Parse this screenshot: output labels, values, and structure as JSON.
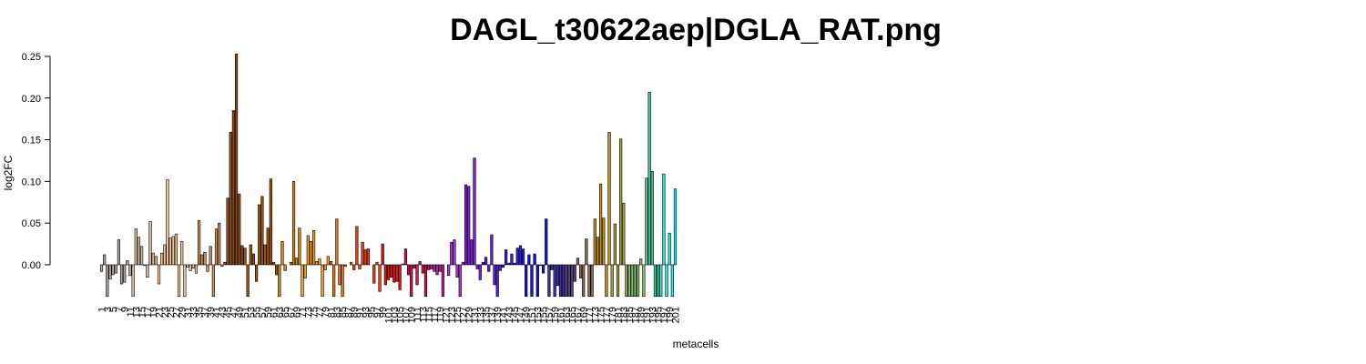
{
  "chart_data": {
    "type": "bar",
    "title": "DAGL_t30622aep|DGLA_RAT.png",
    "x_label": "metacells",
    "y_label": "log2FC",
    "categories": [
      "1",
      null,
      "3",
      null,
      "5",
      null,
      "7",
      null,
      "9",
      null,
      "11",
      null,
      "13",
      null,
      "15",
      null,
      "17",
      null,
      "19",
      null,
      "21",
      null,
      "23",
      null,
      "25",
      null,
      "27",
      null,
      "29",
      null,
      "31",
      null,
      "33",
      null,
      "35",
      null,
      "37",
      null,
      "39",
      null,
      "41",
      null,
      "43",
      null,
      "45",
      null,
      "47",
      null,
      "49",
      null,
      "51",
      null,
      "53",
      null,
      "55",
      null,
      "57",
      null,
      "59",
      null,
      "61",
      null,
      "63",
      null,
      "65",
      null,
      "67",
      null,
      "69",
      null,
      "71",
      null,
      "73",
      null,
      "75",
      null,
      "77",
      null,
      "79",
      null,
      "81",
      null,
      "83",
      null,
      "85",
      null,
      "87",
      null,
      "89",
      null,
      "91",
      null,
      "93",
      null,
      "95",
      null,
      "97",
      null,
      "99",
      null,
      "101",
      null,
      "103",
      null,
      "105",
      null,
      "107",
      null,
      "109",
      null,
      "111",
      null,
      "113",
      null,
      "115",
      null,
      "117",
      null,
      "119",
      null,
      "121",
      null,
      "123",
      null,
      "125",
      null,
      "127",
      null,
      "129",
      null,
      "131",
      null,
      "133",
      null,
      "135",
      null,
      "137",
      null,
      "139",
      null,
      "141",
      null,
      "143",
      null,
      "145",
      null,
      "147",
      null,
      "149",
      null,
      "151",
      null,
      "153",
      null,
      "155",
      null,
      "157",
      null,
      "159",
      null,
      "161",
      null,
      "163",
      null,
      "165",
      null,
      "167",
      null,
      "169",
      null,
      "171",
      null,
      "173",
      null,
      "175",
      null,
      "177",
      null,
      "179",
      null,
      "181",
      null,
      "183",
      null,
      "185",
      null,
      "187",
      null,
      "189",
      null,
      "191",
      null,
      "193",
      null,
      "195",
      null,
      "197",
      null,
      "199",
      null,
      "201"
    ],
    "values": [
      -0.008,
      0.012,
      -0.038,
      -0.017,
      -0.012,
      -0.01,
      0.03,
      -0.023,
      -0.021,
      0.005,
      -0.013,
      -0.038,
      0.043,
      0.033,
      0.022,
      -0.001,
      -0.015,
      0.052,
      0.014,
      0.01,
      -0.023,
      0.014,
      0.024,
      0.102,
      0.032,
      0.034,
      0.037,
      -0.038,
      0.028,
      -0.038,
      -0.003,
      -0.007,
      -0.004,
      -0.01,
      0.053,
      0.012,
      0.015,
      -0.008,
      0.022,
      -0.038,
      0.043,
      0.05,
      -0.002,
      0.003,
      0.08,
      0.159,
      0.185,
      0.253,
      0.085,
      0.023,
      0.02,
      -0.038,
      0.024,
      0.013,
      -0.02,
      0.072,
      0.082,
      0.024,
      0.044,
      0.103,
      0.003,
      -0.012,
      -0.038,
      0.028,
      -0.007,
      0.0,
      0.003,
      0.1,
      0.008,
      0.044,
      -0.038,
      -0.016,
      0.035,
      0.028,
      0.041,
      0.004,
      0.007,
      -0.038,
      -0.006,
      0.01,
      0.004,
      -0.038,
      0.055,
      -0.024,
      -0.038,
      -0.002,
      0.0,
      0.003,
      -0.006,
      0.046,
      -0.005,
      0.027,
      0.018,
      0.019,
      0.0,
      -0.022,
      0.003,
      -0.032,
      0.025,
      -0.024,
      -0.018,
      -0.015,
      -0.021,
      -0.02,
      -0.03,
      0.001,
      0.019,
      -0.012,
      -0.038,
      -0.004,
      -0.024,
      0.004,
      -0.01,
      -0.038,
      -0.006,
      -0.005,
      -0.008,
      -0.012,
      -0.008,
      -0.038,
      0.0,
      -0.013,
      0.027,
      0.03,
      -0.015,
      -0.038,
      0.003,
      0.096,
      0.094,
      0.03,
      0.128,
      -0.005,
      -0.018,
      0.003,
      0.009,
      -0.008,
      0.036,
      -0.024,
      -0.038,
      -0.007,
      -0.003,
      0.018,
      0.002,
      0.013,
      0.002,
      0.02,
      0.023,
      0.019,
      -0.038,
      0.012,
      -0.038,
      0.013,
      -0.038,
      -0.001,
      -0.01,
      0.055,
      -0.038,
      -0.006,
      -0.038,
      -0.025,
      -0.038,
      -0.038,
      -0.038,
      -0.038,
      -0.038,
      -0.02,
      0.008,
      -0.016,
      -0.038,
      0.031,
      -0.038,
      -0.038,
      0.055,
      0.033,
      0.097,
      0.056,
      -0.038,
      0.159,
      -0.038,
      0.049,
      -0.038,
      0.151,
      0.074,
      -0.038,
      -0.038,
      -0.038,
      -0.038,
      -0.038,
      0.007,
      -0.038,
      0.104,
      0.207,
      0.112,
      -0.038,
      -0.038,
      -0.038,
      0.109,
      -0.038,
      0.038,
      -0.038,
      0.091
    ],
    "colors": [
      "#a8a298",
      "#a8a298",
      "#a8a298",
      "#a8a298",
      "#a8a298",
      "#a8a298",
      "#a8a298",
      "#a8a298",
      "#a8a298",
      "#a8a298",
      "#a8a298",
      "#d4bca0",
      "#d4bca0",
      "#d4bca0",
      "#d4bca0",
      "#d4bca0",
      "#d4bca0",
      "#d4bca0",
      "#d4bca0",
      "#f2c490",
      "#f2c490",
      "#f2c490",
      "#f2c490",
      "#f2c490",
      "#f2c490",
      "#f2c490",
      "#f2c490",
      "#f2c490",
      "#f2c490",
      "#e8c8a8",
      "#e8c8a8",
      "#e8c8a8",
      "#e8c8a8",
      "#e8c8a8",
      "#c89060",
      "#c89060",
      "#c89060",
      "#c89060",
      "#c89060",
      "#c89060",
      "#c89060",
      "#c89060",
      "#c89060",
      "#8e4c1c",
      "#8e4c1c",
      "#8e4c1c",
      "#8e4c1c",
      "#8e4c1c",
      "#8e4c1c",
      "#8e4c1c",
      "#9a5210",
      "#9a5210",
      "#9a5210",
      "#9a5210",
      "#9a5210",
      "#9a5210",
      "#9a5210",
      "#9a5210",
      "#9a5210",
      "#9a5210",
      "#9a5210",
      "#9a5210",
      "#d08810",
      "#d08810",
      "#d08810",
      "#d08810",
      "#d08810",
      "#d08810",
      "#d08810",
      "#d08810",
      "#f2a020",
      "#f2a020",
      "#f2a020",
      "#f2a020",
      "#f2a020",
      "#f2a020",
      "#f2a020",
      "#f2a020",
      "#f2a020",
      "#f2a020",
      "#f07414",
      "#f07414",
      "#f07414",
      "#f07414",
      "#f07414",
      "#f07414",
      "#f07414",
      "#f07414",
      "#f04010",
      "#f04010",
      "#f04010",
      "#f04010",
      "#f04010",
      "#f04010",
      "#f04010",
      "#f04010",
      "#f04010",
      "#f04010",
      "#e41414",
      "#e41414",
      "#e41414",
      "#e41414",
      "#e41414",
      "#e41414",
      "#e41414",
      "#e41414",
      "#d41050",
      "#d41050",
      "#d41050",
      "#d41050",
      "#d41050",
      "#d41050",
      "#d41050",
      "#d41050",
      "#d41050",
      "#c41c9c",
      "#c41c9c",
      "#c41c9c",
      "#c41c9c",
      "#c41c9c",
      "#c41c9c",
      "#a830d8",
      "#a830d8",
      "#a830d8",
      "#a830d8",
      "#a830d8",
      "#a830d8",
      "#8020d4",
      "#8020d4",
      "#8020d4",
      "#8020d4",
      "#8020d4",
      "#8020d4",
      "#5c20d8",
      "#5c20d8",
      "#5c20d8",
      "#5c20d8",
      "#5c20d8",
      "#5c20d8",
      "#5c20d8",
      "#3020e0",
      "#3020e0",
      "#3020e0",
      "#3020e0",
      "#3020e0",
      "#3020e0",
      "#3020e0",
      "#3020e0",
      "#1414d4",
      "#1414d4",
      "#1414d4",
      "#1414d4",
      "#1414d4",
      "#1414d4",
      "#1414d4",
      "#1414d4",
      "#3c30a8",
      "#3c30a8",
      "#3c30a8",
      "#3c30a8",
      "#3c30a8",
      "#3c30a8",
      "#5c4080",
      "#5c4080",
      "#5c4080",
      "#5c4080",
      "#906850",
      "#906850",
      "#906850",
      "#906850",
      "#906850",
      "#906850",
      "#c09020",
      "#c09020",
      "#c09020",
      "#c09020",
      "#c09020",
      "#c09020",
      "#a0a040",
      "#a0a040",
      "#a0a040",
      "#a0a040",
      "#a0a040",
      "#a0a040",
      "#80c070",
      "#80c070",
      "#80c070",
      "#80c070",
      "#80c070",
      "#80c070",
      "#40c898",
      "#40c898",
      "#40c898",
      "#40c898",
      "#40c898",
      "#20e8e8",
      "#20e8e8",
      "#20e8e8",
      "#20e8e8",
      "#20e8e8",
      "#20e8e8"
    ],
    "ylim": [
      -0.04,
      0.26
    ],
    "yticks": [
      {
        "value": 0,
        "label": "0.00"
      },
      0.05,
      {
        "value": 0.1,
        "label": "0.10"
      },
      0.15,
      {
        "value": 0.2,
        "label": "0.20"
      },
      0.25
    ]
  }
}
